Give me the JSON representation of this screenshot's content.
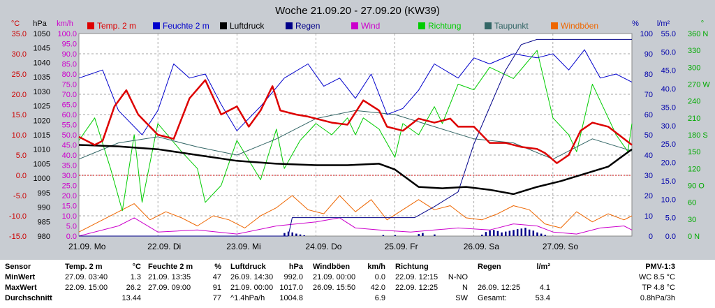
{
  "chart_data": {
    "type": "line",
    "title": "Woche 21.09.20 - 27.09.20 (KW39)",
    "x_labels": [
      "21.09.  Mo",
      "22.09.  Di",
      "23.09.  Mi",
      "24.09.  Do",
      "25.09.  Fr",
      "26.09.  Sa",
      "27.09.  So"
    ],
    "x_range_days": [
      0,
      7
    ],
    "grid": true,
    "legend_position": "top",
    "axes": {
      "temp": {
        "unit": "°C",
        "ticks": [
          "35.0",
          "30.0",
          "25.0",
          "20.0",
          "15.0",
          "10.0",
          "5.0",
          "0.0",
          "-5.0",
          "-10.0",
          "-15.0"
        ],
        "range": [
          -15,
          35
        ],
        "color": "#cc0000"
      },
      "pressure": {
        "unit": "hPa",
        "ticks": [
          "1050",
          "1045",
          "1040",
          "1035",
          "1030",
          "1025",
          "1020",
          "1015",
          "1010",
          "1005",
          "1000",
          "995",
          "990",
          "985",
          "980"
        ],
        "range": [
          980,
          1050
        ],
        "color": "#000000"
      },
      "wind": {
        "unit": "km/h",
        "ticks": [
          "100.0",
          "95.0",
          "90.0",
          "85.0",
          "80.0",
          "75.0",
          "70.0",
          "65.0",
          "60.0",
          "55.0",
          "50.0",
          "45.0",
          "40.0",
          "35.0",
          "30.0",
          "25.0",
          "20.0",
          "15.0",
          "10.0",
          "5.0",
          "0.0"
        ],
        "range": [
          0,
          100
        ],
        "color": "#cc00cc"
      },
      "humidity": {
        "unit": "%",
        "ticks": [
          "100",
          "90",
          "80",
          "70",
          "60",
          "50",
          "40",
          "30",
          "20",
          "10",
          "0"
        ],
        "range": [
          0,
          100
        ],
        "color": "#0000aa"
      },
      "rain": {
        "unit": "l/m²",
        "ticks": [
          "55.0",
          "50.0",
          "45.0",
          "40.0",
          "35.0",
          "30.0",
          "25.0",
          "20.0",
          "15.0",
          "10.0",
          "5.0",
          "0.0"
        ],
        "range": [
          0,
          55
        ],
        "color": "#0000aa"
      },
      "direction": {
        "unit": "°",
        "ticks": [
          "360 N",
          "330",
          "300",
          "270 W",
          "240",
          "210",
          "180 S",
          "150",
          "120",
          "90 O",
          "60",
          "30",
          "0 N"
        ],
        "range": [
          0,
          360
        ],
        "color": "#00aa00"
      }
    },
    "series": [
      {
        "name": "Temp. 2 m",
        "color": "#dd0000",
        "axis": "temp",
        "x": [
          0,
          0.2,
          0.3,
          0.45,
          0.6,
          0.75,
          0.9,
          1.0,
          1.2,
          1.4,
          1.6,
          1.8,
          2.0,
          2.15,
          2.3,
          2.45,
          2.55,
          2.75,
          2.9,
          3.0,
          3.2,
          3.4,
          3.6,
          3.8,
          3.9,
          4.1,
          4.3,
          4.5,
          4.7,
          4.8,
          5.0,
          5.2,
          5.4,
          5.6,
          5.8,
          5.9,
          6.05,
          6.2,
          6.35,
          6.5,
          6.7,
          6.9,
          7.0
        ],
        "values": [
          9.5,
          7.5,
          8.5,
          17,
          21,
          15,
          12,
          10,
          9,
          19,
          23.5,
          15,
          17,
          12,
          16,
          22,
          16,
          15,
          14.5,
          14,
          13,
          12.5,
          18.5,
          16,
          12,
          11,
          14,
          13,
          14,
          12,
          12,
          8,
          8,
          7,
          6.5,
          5.5,
          3,
          5,
          11,
          13,
          12,
          9,
          7.5
        ]
      },
      {
        "name": "Feuchte 2 m",
        "color": "#0000cc",
        "axis": "humidity",
        "x": [
          0,
          0.3,
          0.5,
          0.8,
          1.0,
          1.2,
          1.4,
          1.6,
          1.8,
          2.0,
          2.3,
          2.6,
          2.9,
          3.1,
          3.3,
          3.5,
          3.7,
          3.9,
          4.1,
          4.3,
          4.5,
          4.8,
          5.0,
          5.2,
          5.5,
          5.8,
          6.0,
          6.2,
          6.4,
          6.6,
          6.8,
          7.0
        ],
        "values": [
          78,
          82,
          62,
          50,
          62,
          85,
          78,
          80,
          65,
          52,
          64,
          78,
          85,
          74,
          78,
          68,
          80,
          60,
          63,
          72,
          85,
          78,
          88,
          85,
          90,
          88,
          90,
          82,
          92,
          78,
          80,
          76
        ]
      },
      {
        "name": "Luftdruck",
        "color": "#000000",
        "axis": "pressure",
        "x": [
          0,
          0.5,
          1.0,
          1.5,
          2.0,
          2.5,
          3.0,
          3.4,
          3.8,
          4.0,
          4.3,
          4.6,
          4.9,
          5.2,
          5.5,
          5.8,
          6.1,
          6.4,
          6.7,
          7.0
        ],
        "values": [
          1011.5,
          1011,
          1010,
          1008,
          1006,
          1005,
          1004.5,
          1004.5,
          1005,
          1003,
          997,
          996.5,
          997,
          996,
          994.5,
          997,
          999,
          1001.5,
          1004,
          1010
        ]
      },
      {
        "name": "Regen",
        "color": "#000088",
        "axis": "rain",
        "x": [
          0,
          2.65,
          2.7,
          4.25,
          4.5,
          4.8,
          5.0,
          5.2,
          5.4,
          5.6,
          5.8,
          6.1,
          6.4,
          6.7,
          7.0
        ],
        "values": [
          0,
          0,
          5,
          5,
          8,
          12,
          25,
          35,
          45,
          52,
          53.4,
          53.4,
          53.4,
          53.4,
          53.4
        ]
      },
      {
        "name": "Wind",
        "color": "#cc00cc",
        "axis": "wind",
        "x": [
          0,
          0.5,
          0.7,
          1.0,
          1.5,
          2.0,
          2.5,
          3.0,
          3.3,
          3.5,
          3.8,
          4.2,
          4.5,
          4.8,
          5.2,
          5.5,
          5.8,
          6.0,
          6.3,
          6.6,
          6.9,
          7.0
        ],
        "values": [
          0,
          5,
          9,
          2,
          3,
          1,
          5,
          7,
          9,
          4,
          3,
          2,
          3,
          4,
          3,
          6,
          5,
          2,
          1,
          4,
          5,
          3
        ]
      },
      {
        "name": "Richtung",
        "color": "#00cc00",
        "axis": "direction",
        "x": [
          0,
          0.2,
          0.4,
          0.55,
          0.7,
          0.8,
          1.0,
          1.3,
          1.5,
          1.6,
          1.8,
          2.0,
          2.3,
          2.5,
          2.6,
          2.8,
          3.0,
          3.2,
          3.4,
          3.5,
          3.6,
          3.8,
          4.0,
          4.1,
          4.2,
          4.3,
          4.5,
          4.6,
          4.8,
          5.0,
          5.2,
          5.5,
          5.8,
          6.0,
          6.2,
          6.3,
          6.5,
          6.7,
          6.8,
          6.95,
          7.0
        ],
        "values": [
          170,
          210,
          120,
          45,
          180,
          60,
          200,
          150,
          120,
          60,
          90,
          170,
          100,
          190,
          120,
          170,
          200,
          180,
          210,
          180,
          210,
          190,
          140,
          200,
          190,
          180,
          230,
          200,
          270,
          260,
          300,
          280,
          330,
          210,
          180,
          150,
          270,
          210,
          180,
          150,
          200
        ]
      },
      {
        "name": "Taupunkt",
        "color": "#336666",
        "axis": "temp",
        "x": [
          0,
          0.5,
          1.0,
          1.5,
          2.0,
          2.5,
          3.0,
          3.5,
          4.0,
          4.5,
          5.0,
          5.5,
          6.0,
          6.5,
          7.0
        ],
        "values": [
          4,
          8,
          9.5,
          7,
          5,
          9,
          14,
          16,
          15,
          12,
          9,
          8,
          4,
          9,
          6
        ]
      },
      {
        "name": "Windböen",
        "color": "#ee6600",
        "axis": "wind",
        "x": [
          0,
          0.3,
          0.5,
          0.7,
          0.9,
          1.1,
          1.3,
          1.5,
          1.7,
          1.9,
          2.1,
          2.3,
          2.5,
          2.7,
          2.9,
          3.1,
          3.3,
          3.5,
          3.7,
          3.9,
          4.1,
          4.3,
          4.5,
          4.7,
          4.9,
          5.1,
          5.3,
          5.5,
          5.7,
          5.9,
          6.1,
          6.3,
          6.5,
          6.7,
          6.9,
          7.0
        ],
        "values": [
          2,
          8,
          12,
          16,
          8,
          12,
          9,
          5,
          10,
          8,
          4,
          10,
          14,
          20,
          13,
          11,
          20,
          12,
          18,
          8,
          13,
          18,
          13,
          15,
          9,
          8,
          11,
          15,
          13,
          6,
          4,
          12,
          7,
          11,
          8,
          10
        ]
      }
    ],
    "rain_bars": {
      "color": "#000088",
      "x": [
        2.6,
        2.65,
        2.7,
        2.75,
        2.8,
        2.85,
        3.85,
        4.0,
        4.3,
        4.35,
        4.5,
        5.1,
        5.15,
        5.2,
        5.25,
        5.3,
        5.35,
        5.4,
        5.45,
        5.5,
        5.55,
        5.6,
        5.65,
        5.7,
        5.75,
        5.8,
        5.85,
        5.9
      ],
      "values": [
        1.5,
        2.2,
        1.8,
        1.2,
        0.8,
        0.4,
        0.5,
        0.5,
        1.0,
        1.5,
        0.8,
        0.7,
        2.0,
        2.8,
        3.0,
        2.5,
        1.8,
        2.2,
        2.6,
        3.0,
        3.4,
        3.7,
        4.1,
        3.2,
        2.7,
        1.8,
        1.2,
        0.6
      ]
    },
    "hlines": [
      {
        "axis": "temp",
        "value": 0,
        "color": "#cc0000"
      }
    ]
  },
  "stats": {
    "rows": [
      "Sensor",
      "MinWert",
      "MaxWert",
      "Durchschnitt"
    ],
    "temp": {
      "header": "Temp. 2 m",
      "unit": "°C",
      "min_time": "27.09.  03:40",
      "min": "1.3",
      "max_time": "22.09.  15:00",
      "max": "26.2",
      "avg": "13.44"
    },
    "humidity": {
      "header": "Feuchte  2 m",
      "unit": "%",
      "min_time": "21.09.  13:35",
      "min": "47",
      "max_time": "27.09.  09:00",
      "max": "91",
      "avg": "77"
    },
    "pressure": {
      "header": "Luftdruck",
      "unit": "hPa",
      "min_time": "26.09.  14:30",
      "min": "992.0",
      "max_time": "21.09.  00:00",
      "max": "1017.0",
      "avg_label": "^1.4hPa/h",
      "avg": "1004.8"
    },
    "gusts": {
      "header": "Windböen",
      "unit": "km/h",
      "min_time": "21.09.  00:00",
      "min": "0.0",
      "max_time": "26.09.  15:50",
      "max": "42.0",
      "avg": "6.9"
    },
    "direction": {
      "header": "Richtung",
      "min_time": "22.09.  12:15",
      "min": "N-NO",
      "max_time": "22.09.  12:25",
      "max": "N",
      "avg": "SW"
    },
    "rain": {
      "header": "Regen",
      "unit": "l/m²",
      "max_time": "26.09.  12:25",
      "max": "4.1",
      "total_label": "Gesamt:",
      "total": "53.4"
    },
    "pmv": {
      "header": "PMV-1:3",
      "wc": "WC 8.5 °C",
      "tp": "TP 4.8 °C",
      "trend": "0.8hPa/3h"
    }
  }
}
